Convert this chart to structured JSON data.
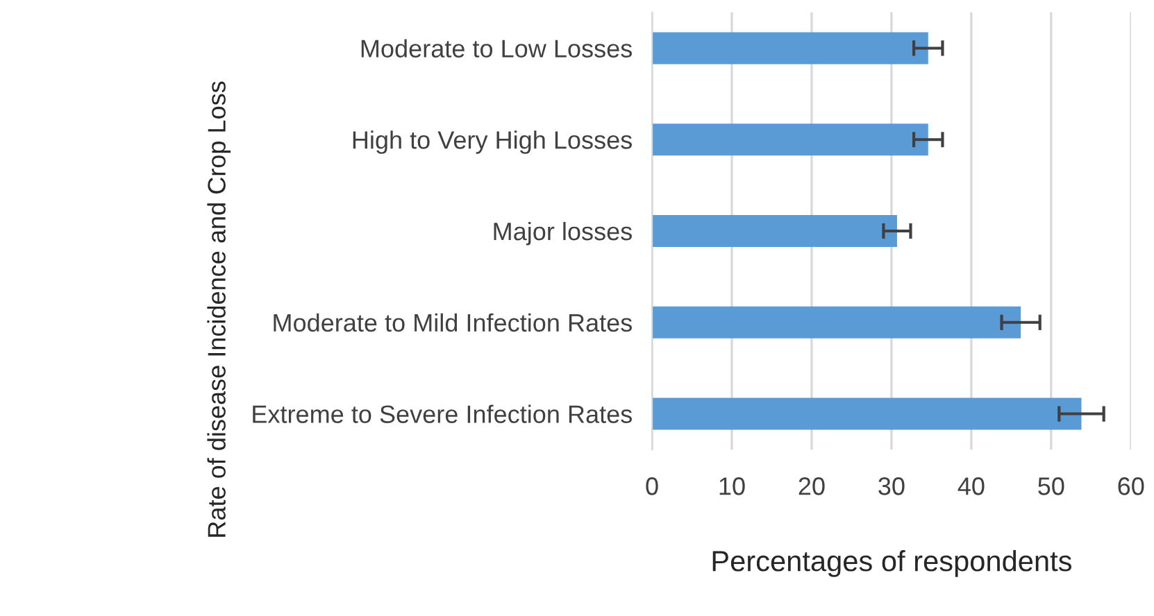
{
  "chart_data": {
    "type": "bar",
    "orientation": "horizontal",
    "xlabel": "Percentages of respondents",
    "ylabel": "Rate of disease Incidence and Crop Loss",
    "categories": [
      "Moderate to Low Losses",
      "High to Very High Losses",
      "Major losses",
      "Moderate to Mild Infection Rates",
      "Extreme to Severe Infection Rates"
    ],
    "values": [
      34.6,
      34.6,
      30.7,
      46.2,
      53.8
    ],
    "errors": [
      1.8,
      1.8,
      1.7,
      2.4,
      2.8
    ],
    "color": "#5b9bd5",
    "xlim": [
      0,
      60
    ],
    "xticks": [
      0,
      10,
      20,
      30,
      40,
      50,
      60
    ],
    "grid": "x"
  }
}
